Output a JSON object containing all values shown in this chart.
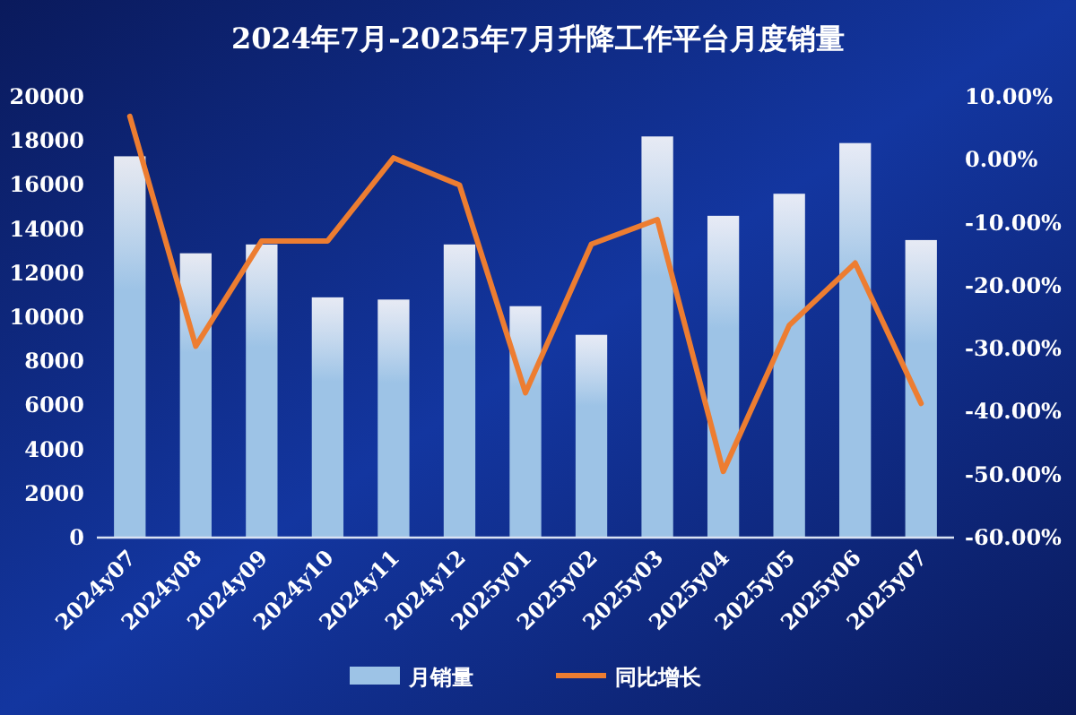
{
  "chart_data": {
    "type": "bar",
    "title": "2024年7月-2025年7月升降工作平台月度销量",
    "categories": [
      "2024y07",
      "2024y08",
      "2024y09",
      "2024y10",
      "2024y11",
      "2024y12",
      "2025y01",
      "2025y02",
      "2025y03",
      "2025y04",
      "2025y05",
      "2025y06",
      "2025y07"
    ],
    "series": [
      {
        "name": "月销量",
        "color": "#9dc3e6",
        "values": [
          17300,
          12900,
          13300,
          10900,
          10800,
          13300,
          10500,
          9200,
          18200,
          14600,
          15600,
          17900,
          13500
        ]
      },
      {
        "name": "同比增长",
        "type": "line",
        "axis": "y2",
        "color": "#ed7d31",
        "values": [
          6.9,
          -29.6,
          -12.9,
          -12.9,
          0.3,
          -4.0,
          -37.0,
          -13.4,
          -9.5,
          -49.5,
          -26.3,
          -16.4,
          -38.7
        ]
      }
    ],
    "ylim": [
      0,
      20000
    ],
    "yticks": [
      0,
      2000,
      4000,
      6000,
      8000,
      10000,
      12000,
      14000,
      16000,
      18000,
      20000
    ],
    "y2lim": [
      -60,
      10
    ],
    "y2ticks": [
      {
        "value": -60,
        "label": "-60.00%"
      },
      {
        "value": -50,
        "label": "-50.00%"
      },
      {
        "value": -40,
        "label": "-40.00%"
      },
      {
        "value": -30,
        "label": "-30.00%"
      },
      {
        "value": -20,
        "label": "-20.00%"
      },
      {
        "value": -10,
        "label": "-10.00%"
      },
      {
        "value": 0,
        "label": "0.00%"
      },
      {
        "value": 10,
        "label": "10.00%"
      }
    ],
    "legend": "bottom"
  }
}
